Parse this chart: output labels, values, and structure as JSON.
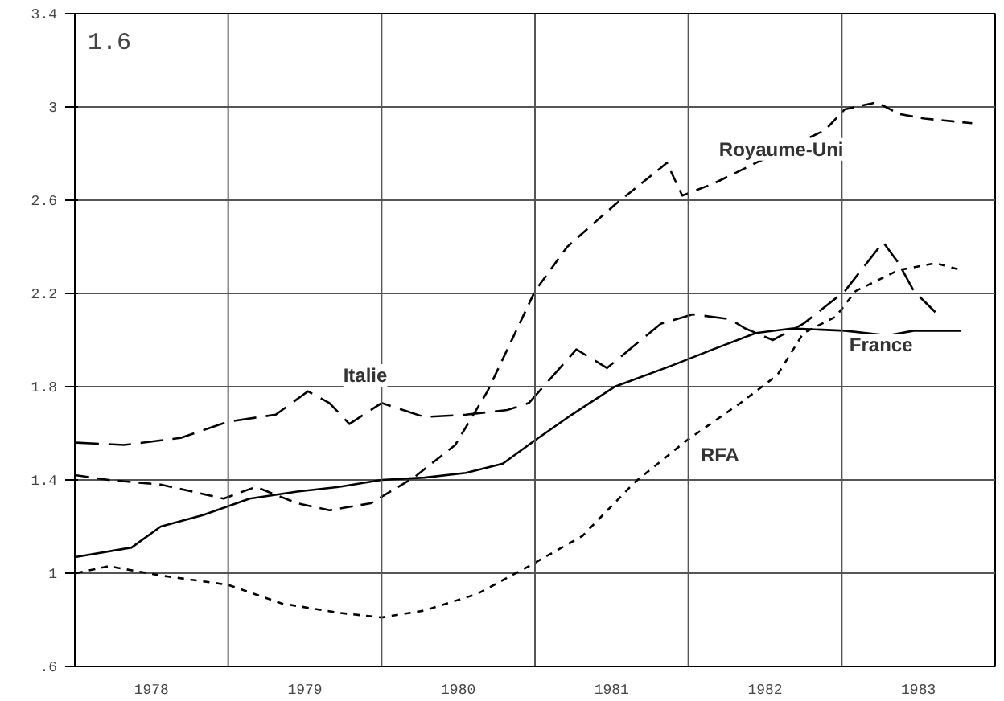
{
  "chart_data": {
    "type": "line",
    "annotations": [
      "1.6"
    ],
    "xlim": [
      1978,
      1984
    ],
    "ylim": [
      0.6,
      3.4
    ],
    "xticks": [
      {
        "value": 1978.5,
        "label": "1978"
      },
      {
        "value": 1979.5,
        "label": "1979"
      },
      {
        "value": 1980.5,
        "label": "1980"
      },
      {
        "value": 1981.5,
        "label": "1981"
      },
      {
        "value": 1982.5,
        "label": "1982"
      },
      {
        "value": 1983.5,
        "label": "1983"
      }
    ],
    "yticks": [
      {
        "value": 0.6,
        "label": ".6"
      },
      1,
      1.4,
      1.8,
      2.2,
      2.6,
      3,
      3.4
    ],
    "grid": "y",
    "ref_lines": [
      {
        "axis": "x",
        "value": 1979
      },
      {
        "axis": "x",
        "value": 1980
      },
      {
        "axis": "x",
        "value": 1981
      },
      {
        "axis": "x",
        "value": 1982
      },
      {
        "axis": "x",
        "value": 1983
      }
    ],
    "series": [
      {
        "name": "France",
        "color": "#000000",
        "line_style": "solid",
        "x": [
          1978.01,
          1978.37,
          1978.56,
          1978.84,
          1979.14,
          1979.45,
          1979.72,
          1980.0,
          1980.28,
          1980.55,
          1980.79,
          1981.0,
          1981.24,
          1981.52,
          1981.89,
          1982.16,
          1982.44,
          1982.68,
          1983.02,
          1983.3,
          1983.47,
          1983.78
        ],
        "values": [
          1.07,
          1.11,
          1.2,
          1.25,
          1.32,
          1.35,
          1.37,
          1.4,
          1.41,
          1.43,
          1.47,
          1.57,
          1.68,
          1.8,
          1.89,
          1.96,
          2.03,
          2.05,
          2.04,
          2.02,
          2.04,
          2.04
        ]
      },
      {
        "name": "Italie",
        "color": "#000000",
        "line_style": "dashed",
        "x": [
          1978.01,
          1978.32,
          1978.69,
          1979.0,
          1979.31,
          1979.52,
          1979.66,
          1979.79,
          1980.0,
          1980.28,
          1980.55,
          1980.82,
          1980.96,
          1981.27,
          1981.47,
          1981.82,
          1982.03,
          1982.27,
          1982.37,
          1982.55,
          1982.75,
          1983.02,
          1983.27,
          1983.37,
          1983.47,
          1983.61
        ],
        "values": [
          1.56,
          1.55,
          1.58,
          1.65,
          1.68,
          1.78,
          1.73,
          1.64,
          1.73,
          1.67,
          1.68,
          1.7,
          1.73,
          1.96,
          1.88,
          2.07,
          2.11,
          2.09,
          2.05,
          2.0,
          2.07,
          2.21,
          2.42,
          2.33,
          2.21,
          2.12
        ]
      },
      {
        "name": "Royaume-Uni",
        "color": "#000000",
        "line_style": "dashed",
        "x": [
          1978.01,
          1978.22,
          1978.56,
          1978.97,
          1979.18,
          1979.45,
          1979.66,
          1979.93,
          1980.21,
          1980.48,
          1980.69,
          1980.82,
          1981.0,
          1981.21,
          1981.52,
          1981.86,
          1981.96,
          1982.16,
          1982.44,
          1982.89,
          1983.02,
          1983.23,
          1983.37,
          1983.54,
          1983.85
        ],
        "values": [
          1.42,
          1.4,
          1.38,
          1.32,
          1.37,
          1.3,
          1.27,
          1.3,
          1.41,
          1.55,
          1.78,
          1.96,
          2.21,
          2.4,
          2.58,
          2.76,
          2.62,
          2.67,
          2.76,
          2.9,
          2.99,
          3.02,
          2.97,
          2.95,
          2.93
        ]
      },
      {
        "name": "RFA",
        "color": "#000000",
        "line_style": "dotted",
        "x": [
          1978.01,
          1978.22,
          1978.56,
          1979.0,
          1979.35,
          1979.72,
          1980.0,
          1980.28,
          1980.62,
          1980.96,
          1981.31,
          1981.65,
          1981.99,
          1982.34,
          1982.58,
          1982.75,
          1982.96,
          1983.09,
          1983.37,
          1983.61,
          1983.78
        ],
        "values": [
          1.0,
          1.03,
          0.99,
          0.95,
          0.87,
          0.83,
          0.81,
          0.84,
          0.91,
          1.03,
          1.16,
          1.39,
          1.57,
          1.73,
          1.85,
          2.03,
          2.1,
          2.21,
          2.3,
          2.33,
          2.3
        ]
      }
    ]
  }
}
